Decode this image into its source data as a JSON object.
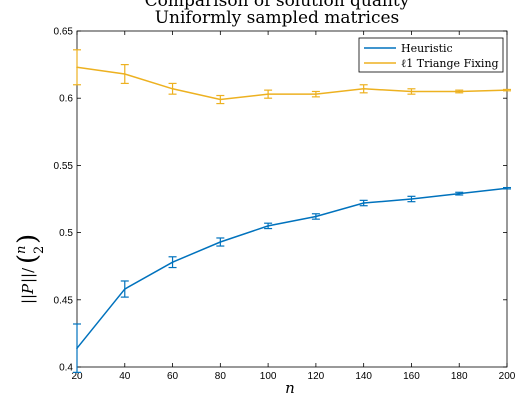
{
  "chart_data": {
    "type": "line",
    "title": "Uniformly sampled matrices",
    "title_partial_above": "Comparison of solution quality",
    "xlabel": "n",
    "ylabel": "||P|| / (n choose 2)",
    "xlim": [
      20,
      200
    ],
    "ylim": [
      0.4,
      0.65
    ],
    "x_ticks": [
      20,
      40,
      60,
      80,
      100,
      120,
      140,
      160,
      180,
      200
    ],
    "y_ticks": [
      0.4,
      0.45,
      0.5,
      0.55,
      0.6,
      0.65
    ],
    "x_tick_labels": [
      "20",
      "40",
      "60",
      "80",
      "100",
      "120",
      "140",
      "160",
      "180",
      "200"
    ],
    "y_tick_labels": [
      "0.4",
      "0.45",
      "0.5",
      "0.55",
      "0.6",
      "0.65"
    ],
    "grid": false,
    "legend_position": "top-right",
    "x": [
      20,
      40,
      60,
      80,
      100,
      120,
      140,
      160,
      180,
      200
    ],
    "series": [
      {
        "name": "Heuristic",
        "color": "#0072bd",
        "values": [
          0.414,
          0.458,
          0.478,
          0.493,
          0.505,
          0.512,
          0.522,
          0.525,
          0.529,
          0.533
        ],
        "errors": [
          0.018,
          0.006,
          0.004,
          0.003,
          0.002,
          0.002,
          0.002,
          0.002,
          0.001,
          0.0005
        ]
      },
      {
        "name": "ℓ1 Triange Fixing",
        "color": "#edb120",
        "values": [
          0.623,
          0.618,
          0.607,
          0.599,
          0.603,
          0.603,
          0.607,
          0.605,
          0.605,
          0.606
        ],
        "errors": [
          0.013,
          0.007,
          0.004,
          0.003,
          0.003,
          0.002,
          0.003,
          0.002,
          0.001,
          0.0005
        ]
      }
    ]
  }
}
